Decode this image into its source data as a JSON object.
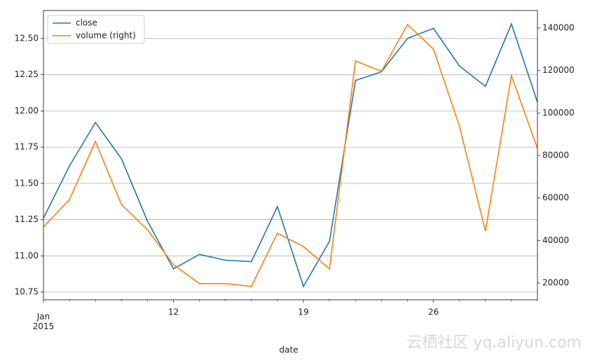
{
  "chart_data": {
    "type": "line",
    "x_label": "date",
    "categories": [
      "Jan\n2015",
      null,
      null,
      null,
      null,
      "12",
      null,
      null,
      null,
      null,
      "19",
      null,
      null,
      null,
      null,
      "26",
      null,
      null,
      null,
      null
    ],
    "series": [
      {
        "name": "close",
        "color": "#1f77b4",
        "values": [
          11.26,
          11.62,
          11.92,
          11.67,
          11.24,
          10.91,
          11.01,
          10.97,
          10.96,
          11.34,
          10.79,
          11.1,
          12.21,
          12.27,
          12.5,
          12.57,
          12.31,
          12.17,
          12.6,
          12.06
        ]
      },
      {
        "name": "volume (right)",
        "color": "#ff7f0e",
        "axis": "y2",
        "values": [
          46400,
          59200,
          86600,
          56900,
          45100,
          28600,
          19700,
          19700,
          18400,
          43400,
          37100,
          26600,
          124500,
          119600,
          141600,
          130100,
          93800,
          44400,
          117600,
          83300
        ]
      }
    ],
    "ylim": [
      10.697,
      12.693
    ],
    "yticks": [
      10.75,
      {
        "value": 11,
        "label": "11.00"
      },
      11.25,
      {
        "value": 11.5,
        "label": "11.50"
      },
      11.75,
      {
        "value": 12,
        "label": "12.00"
      },
      12.25,
      {
        "value": 12.5,
        "label": "12.50"
      }
    ],
    "y2lim": [
      12088,
      148240
    ],
    "y2ticks": [
      20000,
      40000,
      60000,
      80000,
      100000,
      120000,
      140000
    ],
    "grid": true,
    "legend": "upper left"
  },
  "watermark": "云栖社区 yq.aliyun.com"
}
